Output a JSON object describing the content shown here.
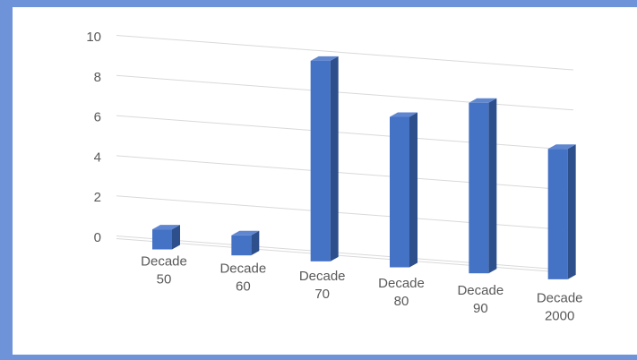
{
  "colors": {
    "frame": "#6f93d8",
    "bar_front": "#4472c4",
    "bar_side": "#2d4f8c",
    "bar_top": "#5f86d0",
    "grid": "#d9d9d9",
    "text": "#595959"
  },
  "chart_data": {
    "type": "bar",
    "style": "3d-column",
    "title": "",
    "xlabel": "",
    "ylabel": "",
    "categories": [
      [
        "Decade",
        "50"
      ],
      [
        "Decade",
        "60"
      ],
      [
        "Decade",
        "70"
      ],
      [
        "Decade",
        "80"
      ],
      [
        "Decade",
        "90"
      ],
      [
        "Decade",
        "2000"
      ]
    ],
    "series": [
      {
        "values": [
          1,
          1,
          10,
          7.5,
          8.5,
          6.5
        ]
      }
    ],
    "ylim": [
      0,
      10
    ],
    "yticks": [
      "0",
      "2",
      "4",
      "6",
      "8",
      "10"
    ],
    "grid": true,
    "legend": "none"
  }
}
